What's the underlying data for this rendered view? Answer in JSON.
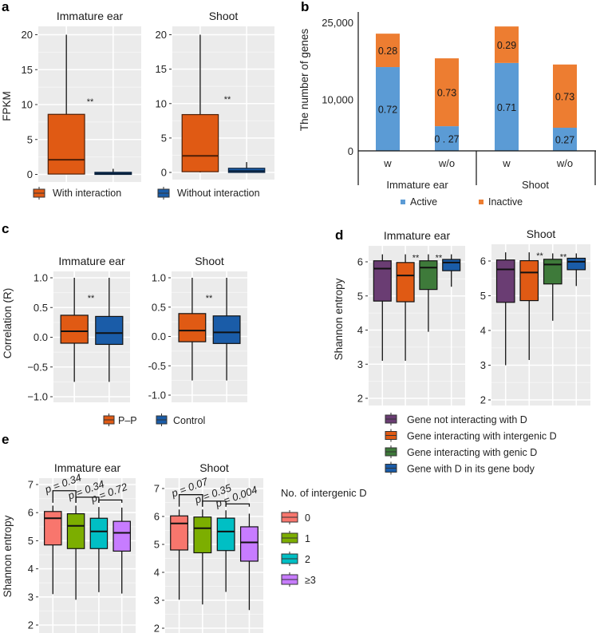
{
  "chart_data": [
    {
      "id": "a",
      "type": "box",
      "panel_label": "a",
      "ylabel": "FPKM",
      "ylim": [
        0,
        20
      ],
      "yticks": [
        0,
        5,
        10,
        15,
        20
      ],
      "grid": true,
      "legend": {
        "placement": "bottom",
        "entries": [
          {
            "name": "With interaction",
            "color": "#E05A14"
          },
          {
            "name": "Without interaction",
            "color": "#1A5CA8"
          }
        ]
      },
      "facets": [
        {
          "title": "Immature ear",
          "significance": "**",
          "boxes": [
            {
              "group": "With interaction",
              "color": "#E05A14",
              "whisker_low": 0,
              "q1": 0.05,
              "median": 2.1,
              "q3": 8.6,
              "whisker_high": 20
            },
            {
              "group": "Without interaction",
              "color": "#1A5CA8",
              "whisker_low": 0,
              "q1": 0.0,
              "median": 0.1,
              "q3": 0.3,
              "whisker_high": 0.8
            }
          ]
        },
        {
          "title": "Shoot",
          "significance": "**",
          "boxes": [
            {
              "group": "With interaction",
              "color": "#E05A14",
              "whisker_low": 0,
              "q1": 0.1,
              "median": 2.4,
              "q3": 8.4,
              "whisker_high": 20
            },
            {
              "group": "Without interaction",
              "color": "#1A5CA8",
              "whisker_low": 0,
              "q1": 0.0,
              "median": 0.2,
              "q3": 0.6,
              "whisker_high": 1.5
            }
          ]
        }
      ]
    },
    {
      "id": "b",
      "type": "bar",
      "stacked": true,
      "panel_label": "b",
      "ylabel": "The number of genes",
      "ylim": [
        0,
        25000
      ],
      "yticks": [
        0,
        10000,
        25000
      ],
      "ytick_labels": [
        "0",
        "10,000",
        "25,000"
      ],
      "grid": false,
      "categories": [
        "w",
        "w/o",
        "w",
        "w/o"
      ],
      "group_labels": [
        "Immature ear",
        "Shoot"
      ],
      "series": [
        {
          "name": "Active",
          "color": "#5B9BD5",
          "values": [
            16300,
            4800,
            17100,
            4500
          ],
          "labels": [
            "0.72",
            "0 . 27",
            "0.71",
            "0.27"
          ]
        },
        {
          "name": "Inactive",
          "color": "#ED7D31",
          "values": [
            6500,
            13200,
            7100,
            12300
          ],
          "labels": [
            "0.28",
            "0.73",
            "0.29",
            "0.73"
          ]
        }
      ],
      "legend": {
        "placement": "bottom",
        "entries": [
          {
            "name": "Active",
            "color": "#5B9BD5"
          },
          {
            "name": "Inactive",
            "color": "#ED7D31"
          }
        ]
      }
    },
    {
      "id": "c",
      "type": "box",
      "panel_label": "c",
      "ylabel": "Correlation (R)",
      "ylim": [
        -1.0,
        1.0
      ],
      "yticks": [
        -1.0,
        -0.5,
        0.0,
        0.5,
        1.0
      ],
      "ytick_labels": [
        "−1.0",
        "−0.5",
        "0.0",
        "0.5",
        "1.0"
      ],
      "ytick_labels_right": [
        "-1.0",
        "-0.5",
        "0.0",
        "0.5",
        "1.0"
      ],
      "grid": true,
      "legend": {
        "placement": "bottom",
        "entries": [
          {
            "name": "P–P",
            "color": "#E05A14"
          },
          {
            "name": "Control",
            "color": "#1A5CA8"
          }
        ]
      },
      "facets": [
        {
          "title": "Immature ear",
          "significance": "**",
          "boxes": [
            {
              "group": "P–P",
              "color": "#E05A14",
              "whisker_low": -0.75,
              "q1": -0.1,
              "median": 0.1,
              "q3": 0.37,
              "whisker_high": 1.0
            },
            {
              "group": "Control",
              "color": "#1A5CA8",
              "whisker_low": -0.75,
              "q1": -0.12,
              "median": 0.07,
              "q3": 0.35,
              "whisker_high": 1.0
            }
          ]
        },
        {
          "title": "Shoot",
          "significance": "**",
          "boxes": [
            {
              "group": "P–P",
              "color": "#E05A14",
              "whisker_low": -0.75,
              "q1": -0.09,
              "median": 0.1,
              "q3": 0.39,
              "whisker_high": 1.0
            },
            {
              "group": "Control",
              "color": "#1A5CA8",
              "whisker_low": -0.75,
              "q1": -0.12,
              "median": 0.07,
              "q3": 0.35,
              "whisker_high": 1.0
            }
          ]
        }
      ]
    },
    {
      "id": "d",
      "type": "box",
      "panel_label": "d",
      "ylabel": "Shannon entropy",
      "ylim": [
        2,
        6.3
      ],
      "yticks": [
        2,
        3,
        4,
        5,
        6
      ],
      "grid": true,
      "legend": {
        "placement": "bottom",
        "entries": [
          {
            "name": "Gene not interacting with D",
            "color": "#6A3D73"
          },
          {
            "name": "Gene interacting with intergenic D",
            "color": "#E05A14"
          },
          {
            "name": "Gene interacting with genic D",
            "color": "#3E7A3A"
          },
          {
            "name": "Gene with D in its gene body",
            "color": "#1A5CA8"
          }
        ]
      },
      "facets": [
        {
          "title": "Immature ear",
          "boxes": [
            {
              "color": "#6A3D73",
              "whisker_low": 3.1,
              "q1": 4.85,
              "median": 5.8,
              "q3": 6.03,
              "whisker_high": 6.22,
              "sig": ""
            },
            {
              "color": "#E05A14",
              "whisker_low": 3.1,
              "q1": 4.83,
              "median": 5.6,
              "q3": 5.98,
              "whisker_high": 6.22,
              "sig": "**"
            },
            {
              "color": "#3E7A3A",
              "whisker_low": 3.95,
              "q1": 5.19,
              "median": 5.83,
              "q3": 6.03,
              "whisker_high": 6.22,
              "sig": "**"
            },
            {
              "color": "#1A5CA8",
              "whisker_low": 5.27,
              "q1": 5.74,
              "median": 5.98,
              "q3": 6.07,
              "whisker_high": 6.22,
              "sig": ""
            }
          ]
        },
        {
          "title": "Shoot",
          "boxes": [
            {
              "color": "#6A3D73",
              "whisker_low": 3.0,
              "q1": 4.81,
              "median": 5.76,
              "q3": 6.03,
              "whisker_high": 6.25,
              "sig": ""
            },
            {
              "color": "#E05A14",
              "whisker_low": 3.15,
              "q1": 4.86,
              "median": 5.67,
              "q3": 6.01,
              "whisker_high": 6.25,
              "sig": "**"
            },
            {
              "color": "#3E7A3A",
              "whisker_low": 4.28,
              "q1": 5.34,
              "median": 5.9,
              "q3": 6.05,
              "whisker_high": 6.22,
              "sig": "**"
            },
            {
              "color": "#1A5CA8",
              "whisker_low": 5.28,
              "q1": 5.75,
              "median": 5.98,
              "q3": 6.08,
              "whisker_high": 6.22,
              "sig": ""
            }
          ]
        }
      ]
    },
    {
      "id": "e",
      "type": "box",
      "panel_label": "e",
      "ylabel": "Shannon entropy",
      "ylim": [
        2,
        7.3
      ],
      "yticks": [
        2,
        3,
        4,
        5,
        6,
        7
      ],
      "grid": true,
      "legend": {
        "placement": "right",
        "title": "No. of intergenic D",
        "entries": [
          {
            "name": "0",
            "color": "#F8766D"
          },
          {
            "name": "1",
            "color": "#7CAE00"
          },
          {
            "name": "2",
            "color": "#00BFC4"
          },
          {
            "name": "≥3",
            "color": "#C77CFF"
          }
        ]
      },
      "facets": [
        {
          "title": "Immature ear",
          "pvalues": [
            "p = 0.34",
            "p = 0.34",
            "p = 0.72"
          ],
          "boxes": [
            {
              "color": "#F8766D",
              "whisker_low": 3.1,
              "q1": 4.85,
              "median": 5.8,
              "q3": 6.04,
              "whisker_high": 6.25
            },
            {
              "color": "#7CAE00",
              "whisker_low": 2.9,
              "q1": 4.72,
              "median": 5.53,
              "q3": 5.96,
              "whisker_high": 6.25
            },
            {
              "color": "#00BFC4",
              "whisker_low": 3.17,
              "q1": 4.72,
              "median": 5.33,
              "q3": 5.8,
              "whisker_high": 6.2
            },
            {
              "color": "#C77CFF",
              "whisker_low": 3.12,
              "q1": 4.63,
              "median": 5.28,
              "q3": 5.69,
              "whisker_high": 6.18
            }
          ]
        },
        {
          "title": "Shoot",
          "pvalues": [
            "p = 0.07",
            "p = 0.35",
            "p = 0.004"
          ],
          "boxes": [
            {
              "color": "#F8766D",
              "whisker_low": 3.02,
              "q1": 4.8,
              "median": 5.75,
              "q3": 6.02,
              "whisker_high": 6.25
            },
            {
              "color": "#7CAE00",
              "whisker_low": 2.85,
              "q1": 4.7,
              "median": 5.58,
              "q3": 5.98,
              "whisker_high": 6.25
            },
            {
              "color": "#00BFC4",
              "whisker_low": 3.3,
              "q1": 4.78,
              "median": 5.46,
              "q3": 5.94,
              "whisker_high": 6.22
            },
            {
              "color": "#C77CFF",
              "whisker_low": 2.65,
              "q1": 4.4,
              "median": 5.07,
              "q3": 5.63,
              "whisker_high": 6.1
            }
          ]
        }
      ]
    }
  ]
}
